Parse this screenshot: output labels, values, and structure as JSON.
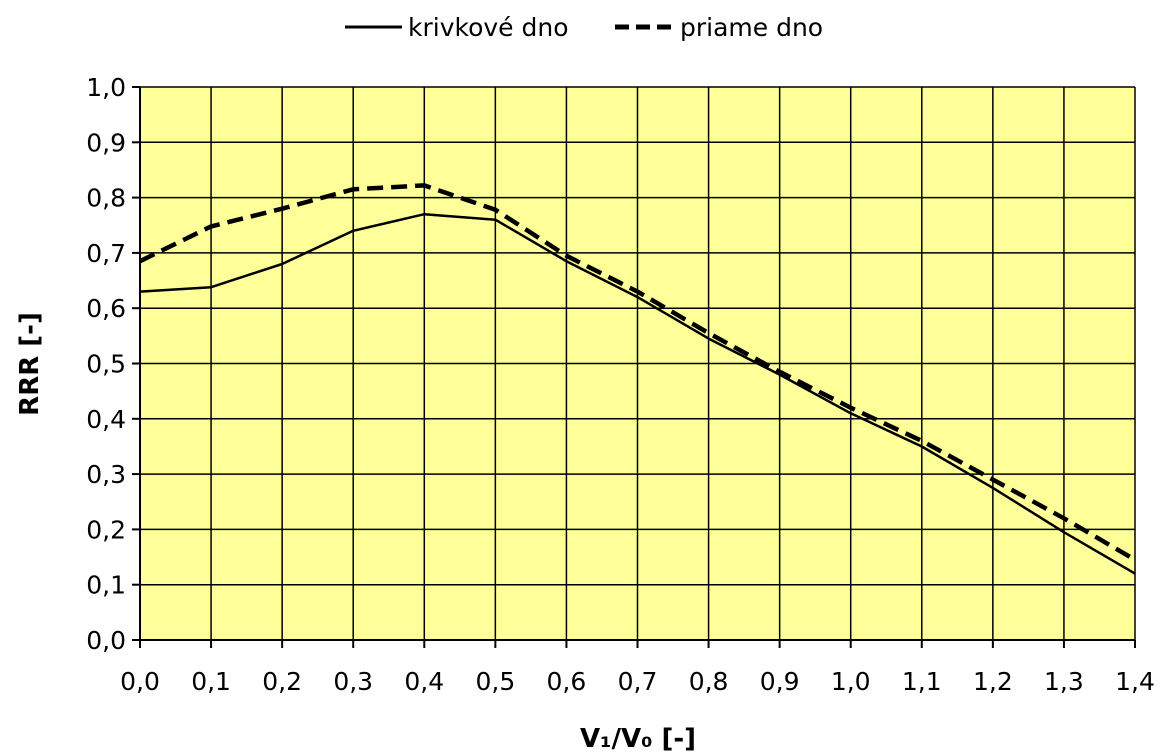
{
  "chart_data": {
    "type": "line",
    "title": "",
    "xlabel": "V₁/V₀ [-]",
    "ylabel": "RRR [-]",
    "x": [
      0.0,
      0.1,
      0.2,
      0.3,
      0.4,
      0.5,
      0.6,
      0.7,
      0.8,
      0.9,
      1.0,
      1.1,
      1.2,
      1.3,
      1.4
    ],
    "x_tick_labels": [
      "0,0",
      "0,1",
      "0,2",
      "0,3",
      "0,4",
      "0,5",
      "0,6",
      "0,7",
      "0,8",
      "0,9",
      "1,0",
      "1,1",
      "1,2",
      "1,3",
      "1,4"
    ],
    "xlim": [
      0,
      1.4
    ],
    "ylim": [
      0,
      1.0
    ],
    "y_ticks": [
      0.0,
      0.1,
      0.2,
      0.3,
      0.4,
      0.5,
      0.6,
      0.7,
      0.8,
      0.9,
      1.0
    ],
    "y_tick_labels": [
      "0,0",
      "0,1",
      "0,2",
      "0,3",
      "0,4",
      "0,5",
      "0,6",
      "0,7",
      "0,8",
      "0,9",
      "1,0"
    ],
    "grid": true,
    "legend_position": "top-center",
    "plot_background": "#ffff99",
    "series": [
      {
        "name": "krivkové dno",
        "style": "solid",
        "color": "#000000",
        "values": [
          0.63,
          0.638,
          0.68,
          0.74,
          0.77,
          0.76,
          0.685,
          0.62,
          0.545,
          0.48,
          0.41,
          0.35,
          0.275,
          0.195,
          0.12
        ]
      },
      {
        "name": "priame dno",
        "style": "dashed",
        "color": "#000000",
        "values": [
          0.685,
          0.748,
          0.78,
          0.815,
          0.822,
          0.778,
          0.695,
          0.63,
          0.555,
          0.485,
          0.42,
          0.36,
          0.29,
          0.22,
          0.145
        ]
      }
    ]
  }
}
